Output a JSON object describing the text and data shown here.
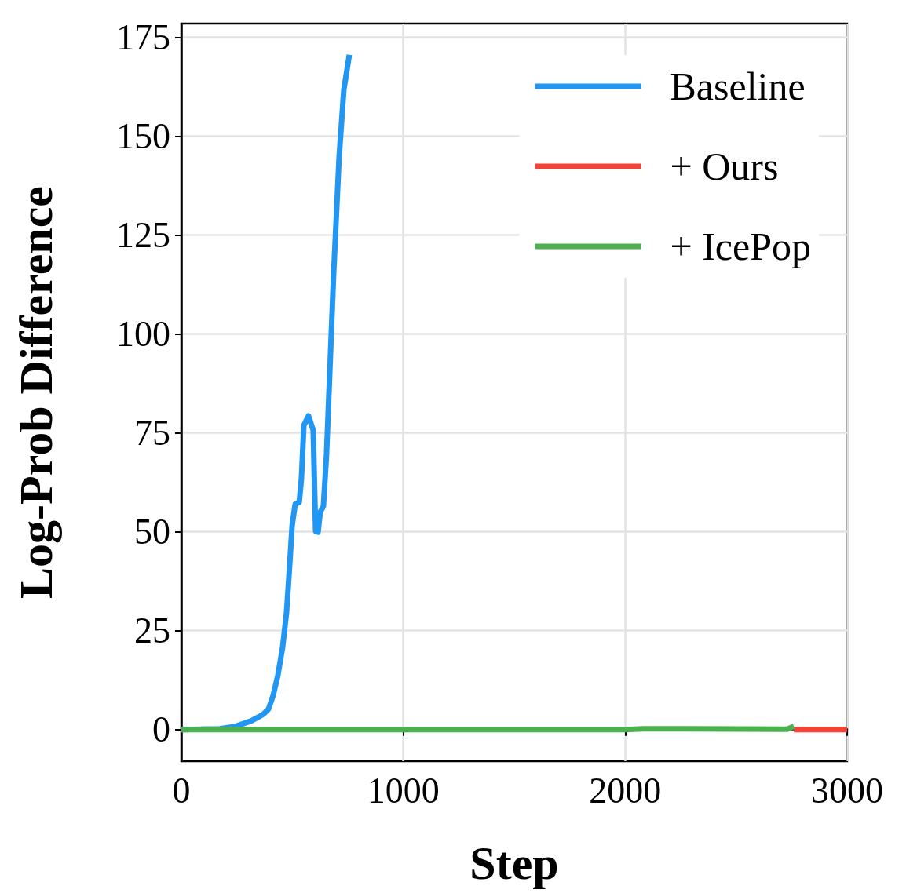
{
  "chart_data": {
    "type": "line",
    "xlabel": "Step",
    "ylabel": "Log-Prob Difference",
    "xlim": [
      0,
      3000
    ],
    "xticks": [
      0,
      1000,
      2000,
      3000
    ],
    "ylim": [
      -8,
      178.5
    ],
    "yticks": [
      0,
      25,
      50,
      75,
      100,
      125,
      150,
      175
    ],
    "grid": true,
    "legend": "top right",
    "marker": "none",
    "line_style": "solid",
    "series": [
      {
        "name": "Baseline",
        "color": "#2196f3",
        "x": [
          0,
          173,
          244,
          315,
          368,
          393,
          414,
          435,
          456,
          474,
          488,
          499,
          513,
          531,
          541,
          552,
          573,
          594,
          605,
          616,
          626,
          640,
          654,
          668,
          686,
          711,
          732,
          757
        ],
        "values": [
          0,
          0.2,
          0.8,
          2.2,
          3.8,
          5.2,
          8.7,
          13.7,
          20.7,
          29.6,
          41.5,
          51.5,
          57.0,
          57.4,
          63.4,
          76.9,
          79.3,
          75.7,
          50.1,
          49.9,
          55.0,
          56.4,
          69.3,
          89.2,
          115.0,
          144.8,
          161.7,
          170.6
        ]
      },
      {
        "name": "+ Ours",
        "color": "#f44336",
        "x": [
          2760,
          3000
        ],
        "values": [
          0,
          0
        ]
      },
      {
        "name": "+ IcePop",
        "color": "#4caf50",
        "x": [
          0,
          1000,
          2000,
          2080,
          2270,
          2730,
          2760
        ],
        "values": [
          0,
          0,
          0,
          0.2,
          0.2,
          0.1,
          0.8
        ]
      }
    ]
  }
}
